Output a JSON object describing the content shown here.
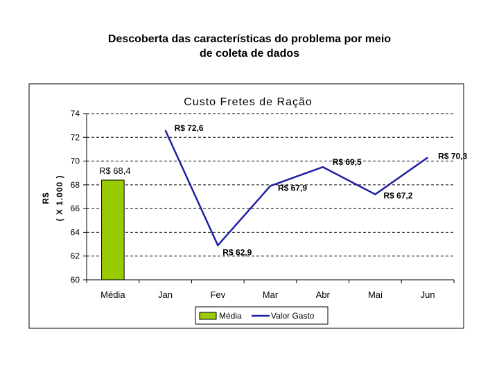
{
  "slide": {
    "title_line1": "Descoberta das características do problema por meio",
    "title_line2": "de coleta de dados"
  },
  "chart_data": {
    "type": "bar+line",
    "title": "Custo Fretes de Ração",
    "ylabel_line1": "R$",
    "ylabel_line2": "( X 1.000 )",
    "xlabel": "",
    "ylim": [
      60,
      74
    ],
    "yticks": [
      60,
      62,
      64,
      66,
      68,
      70,
      72,
      74
    ],
    "grid": "horizontal dashed",
    "legend_position": "bottom",
    "categories": [
      "Média",
      "Jan",
      "Fev",
      "Mar",
      "Abr",
      "Mai",
      "Jun"
    ],
    "series": [
      {
        "name": "Média",
        "kind": "bar",
        "color": "#99cc00",
        "values": [
          68.4,
          null,
          null,
          null,
          null,
          null,
          null
        ],
        "labels": [
          "R$ 68,4",
          null,
          null,
          null,
          null,
          null,
          null
        ]
      },
      {
        "name": "Valor Gasto",
        "kind": "line",
        "color": "#1f1fa0",
        "values": [
          null,
          72.6,
          62.9,
          67.9,
          69.5,
          67.2,
          70.3
        ],
        "labels": [
          null,
          "R$ 72,6",
          "R$ 62,9",
          "R$ 67,9",
          "R$ 69,5",
          "R$ 67,2",
          "R$ 70,3"
        ]
      }
    ]
  }
}
